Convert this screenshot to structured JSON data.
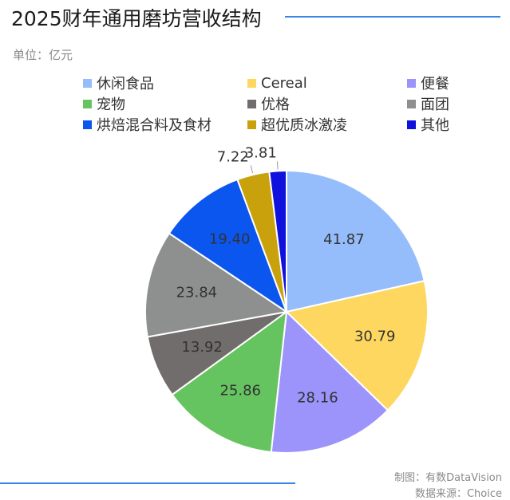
{
  "header": {
    "title": "2025财年通用磨坊营收结构",
    "unit": "单位：亿元"
  },
  "credits": {
    "made_by": "制图：有数DataVision",
    "source": "数据来源：Choice"
  },
  "chart_data": {
    "type": "pie",
    "start_angle_deg": 0,
    "direction": "clockwise",
    "slices": [
      {
        "label": "休闲食品",
        "value": 41.87,
        "value_label": "41.87",
        "color": "#95bdfb"
      },
      {
        "label": "Cereal",
        "value": 30.79,
        "value_label": "30.79",
        "color": "#fdd760"
      },
      {
        "label": "便餐",
        "value": 28.16,
        "value_label": "28.16",
        "color": "#9c94fb"
      },
      {
        "label": "宠物",
        "value": 25.86,
        "value_label": "25.86",
        "color": "#66c460"
      },
      {
        "label": "优格",
        "value": 13.92,
        "value_label": "13.92",
        "color": "#716d6c"
      },
      {
        "label": "面团",
        "value": 23.84,
        "value_label": "23.84",
        "color": "#8e9090"
      },
      {
        "label": "烘焙混合料及食材",
        "value": 19.4,
        "value_label": "19.40",
        "color": "#0b56ee"
      },
      {
        "label": "超优质冰激凌",
        "value": 7.22,
        "value_label": "7.22",
        "color": "#c9a10c"
      },
      {
        "label": "其他",
        "value": 3.81,
        "value_label": "3.81",
        "color": "#1111dd"
      }
    ],
    "legend_position": "top"
  }
}
